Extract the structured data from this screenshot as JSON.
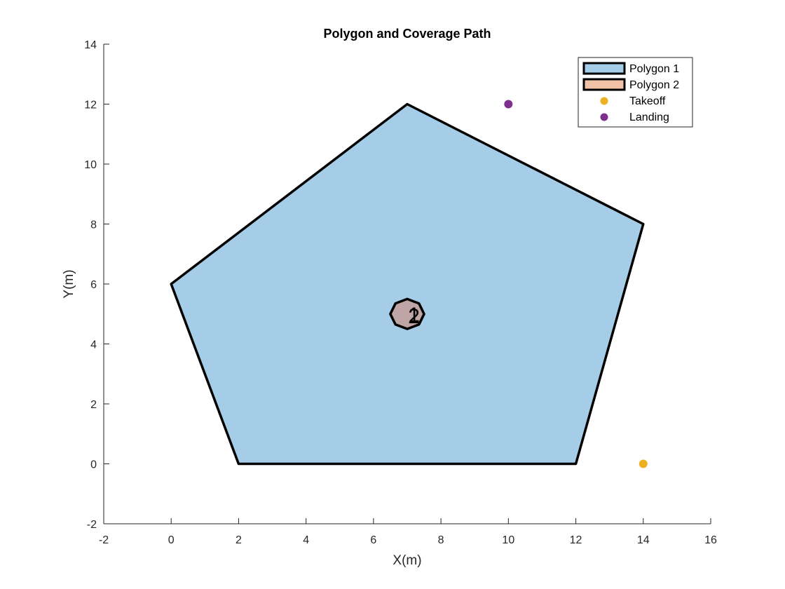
{
  "chart_data": {
    "type": "scatter",
    "title": "Polygon and Coverage Path",
    "xlabel": "X(m)",
    "ylabel": "Y(m)",
    "xlim": [
      -2,
      16
    ],
    "ylim": [
      -2,
      14
    ],
    "xticks": [
      -2,
      0,
      2,
      4,
      6,
      8,
      10,
      12,
      14,
      16
    ],
    "yticks": [
      -2,
      0,
      2,
      4,
      6,
      8,
      10,
      12,
      14
    ],
    "grid": false,
    "legend_position": "top-right",
    "polygons": [
      {
        "name": "Polygon 1",
        "fill": "#a6cde8",
        "stroke": "#000000",
        "vertices": [
          [
            0,
            6
          ],
          [
            7,
            12
          ],
          [
            14,
            8
          ],
          [
            12,
            0
          ],
          [
            2,
            0
          ]
        ],
        "label": "1",
        "label_at": [
          7.2,
          5.0
        ]
      },
      {
        "name": "Polygon 2",
        "fill": "#bfa5a5",
        "legend_fill": "#f2c2a8",
        "stroke": "#000000",
        "vertices": [
          [
            7.5,
            5.0
          ],
          [
            7.35,
            5.35
          ],
          [
            7.0,
            5.5
          ],
          [
            6.65,
            5.35
          ],
          [
            6.5,
            5.0
          ],
          [
            6.65,
            4.65
          ],
          [
            7.0,
            4.5
          ],
          [
            7.35,
            4.65
          ]
        ],
        "label": "2",
        "label_at": [
          7.2,
          4.95
        ]
      }
    ],
    "points": [
      {
        "name": "Takeoff",
        "x": 14,
        "y": 0,
        "color": "#edb120"
      },
      {
        "name": "Landing",
        "x": 10,
        "y": 12,
        "color": "#7e2f8e"
      }
    ]
  }
}
